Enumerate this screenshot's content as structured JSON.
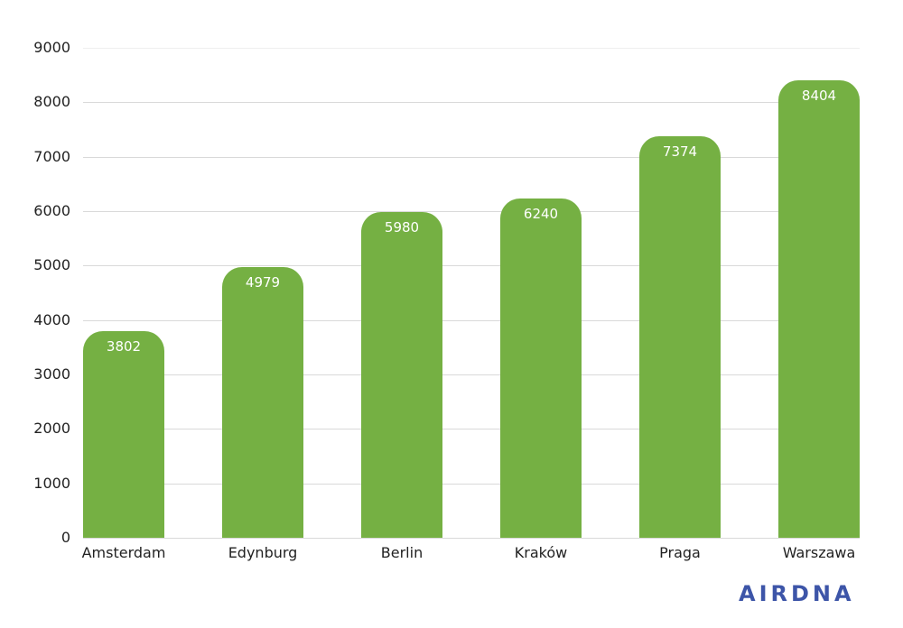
{
  "chart_data": {
    "type": "bar",
    "title": "",
    "xlabel": "",
    "ylabel": "",
    "categories": [
      "Amsterdam",
      "Edynburg",
      "Berlin",
      "Kraków",
      "Praga",
      "Warszawa"
    ],
    "values": [
      3802,
      4979,
      5980,
      6240,
      7374,
      8404
    ],
    "ylim": [
      0,
      9000
    ],
    "yticks": [
      0,
      1000,
      2000,
      3000,
      4000,
      5000,
      6000,
      7000,
      8000,
      9000
    ],
    "grid": true,
    "legend": null,
    "bar_color": "#75b043",
    "data_labels": true
  },
  "branding": {
    "logo_text": "AIRDNA",
    "logo_color": "#3d55a8"
  }
}
